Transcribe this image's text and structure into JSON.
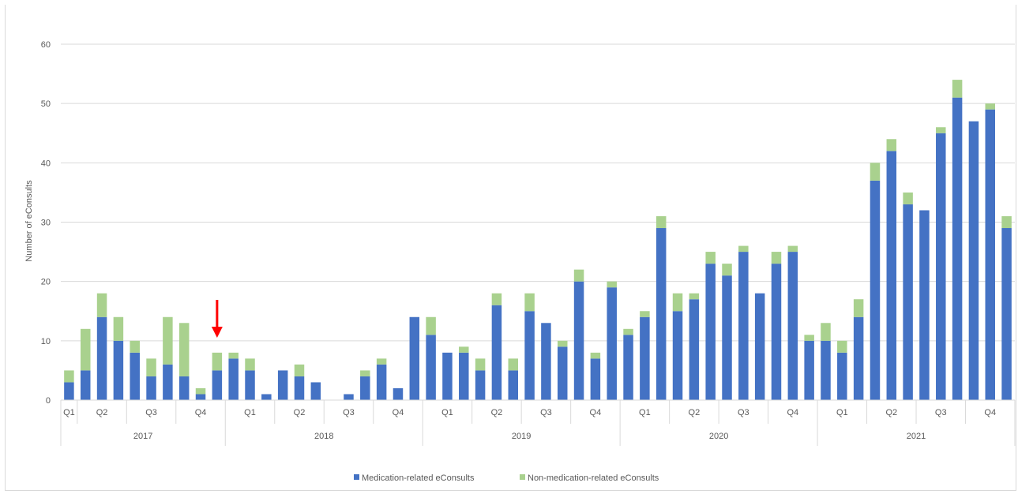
{
  "chart_data": {
    "type": "bar",
    "stacked": true,
    "ylabel": "Number of eConsults",
    "ylim": [
      0,
      60
    ],
    "yticks": [
      0,
      10,
      20,
      30,
      40,
      50,
      60
    ],
    "grid": true,
    "legend_position": "bottom",
    "series": [
      {
        "name": "Medication-related eConsults",
        "color": "#4472c4",
        "values": [
          3,
          5,
          14,
          10,
          8,
          4,
          6,
          4,
          1,
          5,
          7,
          5,
          1,
          5,
          4,
          3,
          0,
          1,
          4,
          6,
          2,
          14,
          11,
          8,
          8,
          5,
          16,
          5,
          15,
          13,
          9,
          20,
          7,
          19,
          11,
          14,
          29,
          15,
          17,
          23,
          21,
          25,
          18,
          23,
          25,
          10,
          10,
          8,
          14,
          37,
          42,
          33,
          32,
          45,
          51,
          47,
          49,
          29
        ]
      },
      {
        "name": "Non-medication-related eConsults",
        "color": "#a9d18e",
        "values": [
          2,
          7,
          4,
          4,
          2,
          3,
          8,
          9,
          1,
          3,
          1,
          2,
          0,
          0,
          2,
          0,
          0,
          0,
          1,
          1,
          0,
          0,
          3,
          0,
          1,
          2,
          2,
          2,
          3,
          0,
          1,
          2,
          1,
          1,
          1,
          1,
          2,
          3,
          1,
          2,
          2,
          1,
          0,
          2,
          1,
          1,
          3,
          2,
          3,
          3,
          2,
          2,
          0,
          1,
          3,
          0,
          1,
          2
        ]
      }
    ],
    "quarters": [
      {
        "label": "Q1",
        "count": 1
      },
      {
        "label": "Q2",
        "count": 3
      },
      {
        "label": "Q3",
        "count": 3
      },
      {
        "label": "Q4",
        "count": 3
      },
      {
        "label": "Q1",
        "count": 3
      },
      {
        "label": "Q2",
        "count": 3
      },
      {
        "label": "Q3",
        "count": 3
      },
      {
        "label": "Q4",
        "count": 3
      },
      {
        "label": "Q1",
        "count": 3
      },
      {
        "label": "Q2",
        "count": 3
      },
      {
        "label": "Q3",
        "count": 3
      },
      {
        "label": "Q4",
        "count": 3
      },
      {
        "label": "Q1",
        "count": 3
      },
      {
        "label": "Q2",
        "count": 3
      },
      {
        "label": "Q3",
        "count": 3
      },
      {
        "label": "Q4",
        "count": 3
      },
      {
        "label": "Q1",
        "count": 3
      },
      {
        "label": "Q2",
        "count": 3
      },
      {
        "label": "Q3",
        "count": 3
      },
      {
        "label": "Q4",
        "count": 3
      }
    ],
    "years": [
      {
        "label": "2017",
        "count": 10
      },
      {
        "label": "2018",
        "count": 12
      },
      {
        "label": "2019",
        "count": 12
      },
      {
        "label": "2020",
        "count": 12
      },
      {
        "label": "2021",
        "count": 12
      }
    ],
    "annotation": {
      "type": "arrow",
      "color": "#ff0000",
      "points_to_bar_index": 9
    }
  }
}
